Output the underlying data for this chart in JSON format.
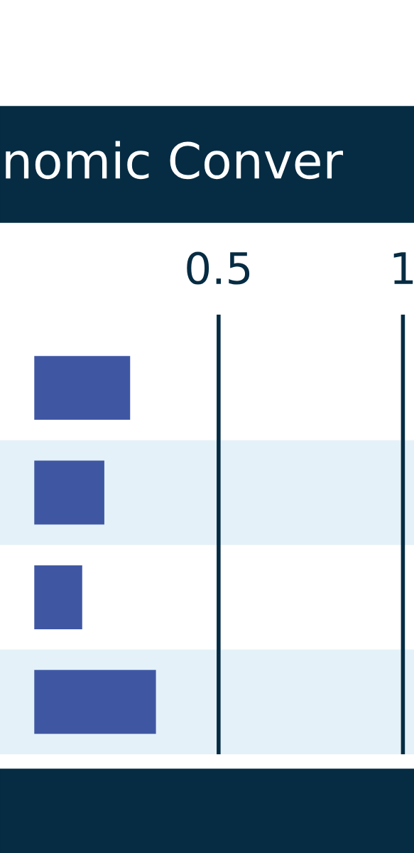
{
  "chart_data": {
    "type": "bar",
    "orientation": "horizontal",
    "title": "nomic Conver",
    "categories": [
      null,
      null,
      null,
      null
    ],
    "values": [
      0.26,
      0.19,
      0.13,
      0.33
    ],
    "color": "#3f57a3",
    "xlim": [
      -0.093,
      1.03
    ],
    "xticks": [
      0.5,
      1
    ],
    "grid": "x"
  }
}
